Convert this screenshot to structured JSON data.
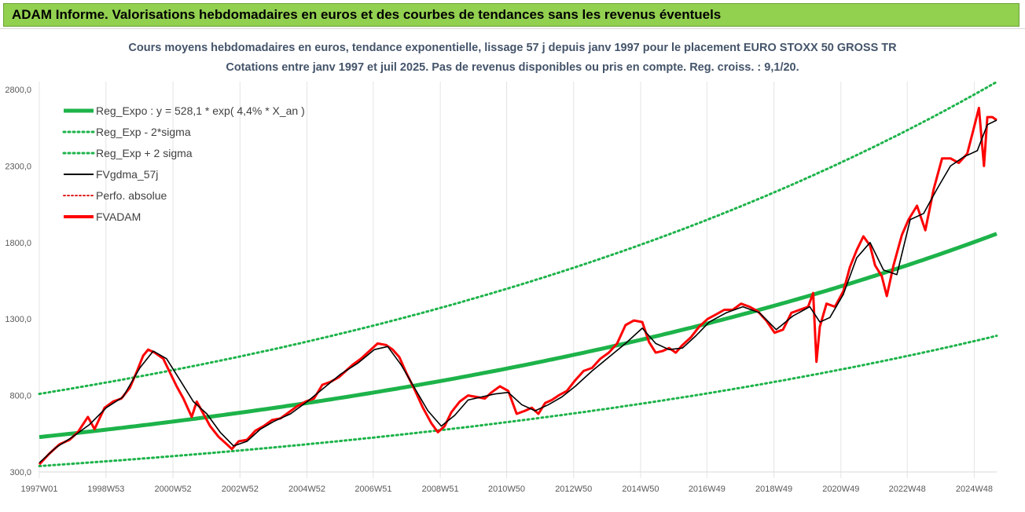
{
  "header": {
    "title": "ADAM Informe. Valorisations hebdomadaires en euros et des courbes de tendances sans les revenus éventuels"
  },
  "colors": {
    "banner": "#92d050",
    "reg_expo": "#1db34a",
    "fvgdma": "#000000",
    "fvadam": "#ff0000",
    "perfo": "#e02020",
    "caption": "#44546a"
  },
  "chart_data": {
    "type": "line",
    "title": "Cours moyens hebdomadaires en euros, tendance exponentielle, lissage 57 j depuis janv 1997 pour le placement EURO STOXX 50 GROSS TR",
    "subtitle": "Cotations entre janv 1997 et juil 2025. Pas de revenus disponibles ou pris en compte. Reg. croiss. : 9,1/20.",
    "ylim": [
      300,
      2800
    ],
    "yticks": [
      "300,0",
      "800,0",
      "1300,0",
      "1800,0",
      "2300,0",
      "2800,0"
    ],
    "xlim": [
      1997.0,
      2025.58
    ],
    "xticks": [
      {
        "label": "1997W01",
        "x": 1997.0
      },
      {
        "label": "1998W53",
        "x": 1998.99
      },
      {
        "label": "2000W52",
        "x": 2000.99
      },
      {
        "label": "2002W52",
        "x": 2002.99
      },
      {
        "label": "2004W52",
        "x": 2004.99
      },
      {
        "label": "2006W51",
        "x": 2006.97
      },
      {
        "label": "2008W51",
        "x": 2008.97
      },
      {
        "label": "2010W50",
        "x": 2010.95
      },
      {
        "label": "2012W50",
        "x": 2012.95
      },
      {
        "label": "2014W50",
        "x": 2014.95
      },
      {
        "label": "2016W49",
        "x": 2016.93
      },
      {
        "label": "2018W49",
        "x": 2018.93
      },
      {
        "label": "2020W49",
        "x": 2020.93
      },
      {
        "label": "2022W48",
        "x": 2022.91
      },
      {
        "label": "2024W48",
        "x": 2024.91
      }
    ],
    "grid": "vertical",
    "legend_position": "top-left",
    "legend": [
      {
        "key": "reg_expo",
        "label": "Reg_Expo : y = 528,1 * exp( 4,4% * X_an )"
      },
      {
        "key": "minus2",
        "label": "Reg_Exp - 2*sigma"
      },
      {
        "key": "plus2",
        "label": "Reg_Exp + 2 sigma"
      },
      {
        "key": "fvgdma",
        "label": "FVgdma_57j"
      },
      {
        "key": "perfo",
        "label": "Perfo. absolue"
      },
      {
        "key": "fvadam",
        "label": "FVADAM"
      }
    ],
    "trend": {
      "a": 528.1,
      "rate": 0.044,
      "minus2_at_end": 1190,
      "plus2_at_end": 2850
    },
    "series": [
      {
        "name": "FVADAM",
        "x": [
          1997.0,
          1997.3,
          1997.6,
          1997.9,
          1998.15,
          1998.45,
          1998.65,
          1998.8,
          1998.95,
          1999.2,
          1999.45,
          1999.7,
          1999.9,
          2000.1,
          2000.25,
          2000.45,
          2000.7,
          2000.9,
          2001.1,
          2001.3,
          2001.55,
          2001.7,
          2001.85,
          2002.1,
          2002.35,
          2002.6,
          2002.75,
          2002.95,
          2003.2,
          2003.45,
          2003.7,
          2003.95,
          2004.2,
          2004.45,
          2004.7,
          2004.95,
          2005.2,
          2005.45,
          2005.7,
          2005.95,
          2006.15,
          2006.35,
          2006.6,
          2006.85,
          2007.1,
          2007.35,
          2007.55,
          2007.75,
          2007.95,
          2008.2,
          2008.45,
          2008.7,
          2008.9,
          2009.1,
          2009.3,
          2009.55,
          2009.8,
          2010.05,
          2010.3,
          2010.5,
          2010.75,
          2011.0,
          2011.25,
          2011.5,
          2011.7,
          2011.9,
          2012.1,
          2012.3,
          2012.5,
          2012.75,
          2013.0,
          2013.25,
          2013.5,
          2013.75,
          2014.0,
          2014.25,
          2014.5,
          2014.75,
          2015.0,
          2015.2,
          2015.4,
          2015.6,
          2015.8,
          2016.0,
          2016.2,
          2016.45,
          2016.7,
          2016.95,
          2017.2,
          2017.45,
          2017.7,
          2017.95,
          2018.2,
          2018.45,
          2018.7,
          2018.95,
          2019.2,
          2019.45,
          2019.7,
          2019.95,
          2020.1,
          2020.2,
          2020.3,
          2020.5,
          2020.75,
          2021.0,
          2021.2,
          2021.4,
          2021.6,
          2021.8,
          2021.95,
          2022.15,
          2022.3,
          2022.5,
          2022.75,
          2022.95,
          2023.2,
          2023.45,
          2023.7,
          2023.95,
          2024.2,
          2024.45,
          2024.7,
          2024.9,
          2025.05,
          2025.2,
          2025.3,
          2025.45,
          2025.58
        ],
        "values": [
          350,
          420,
          480,
          510,
          560,
          660,
          580,
          650,
          720,
          760,
          780,
          850,
          950,
          1060,
          1100,
          1080,
          1040,
          950,
          860,
          780,
          660,
          760,
          700,
          600,
          530,
          480,
          450,
          500,
          510,
          570,
          600,
          640,
          650,
          690,
          730,
          760,
          780,
          870,
          890,
          920,
          960,
          1000,
          1040,
          1090,
          1140,
          1130,
          1100,
          1050,
          950,
          840,
          720,
          620,
          560,
          600,
          690,
          760,
          800,
          790,
          780,
          820,
          860,
          830,
          680,
          700,
          720,
          680,
          750,
          770,
          800,
          830,
          900,
          960,
          980,
          1040,
          1080,
          1140,
          1260,
          1290,
          1280,
          1150,
          1080,
          1090,
          1110,
          1080,
          1130,
          1180,
          1250,
          1300,
          1330,
          1360,
          1360,
          1400,
          1380,
          1350,
          1290,
          1210,
          1230,
          1340,
          1360,
          1380,
          1470,
          1020,
          1250,
          1400,
          1380,
          1480,
          1640,
          1750,
          1840,
          1780,
          1650,
          1580,
          1450,
          1650,
          1850,
          1950,
          2040,
          1880,
          2150,
          2350,
          2350,
          2320,
          2380,
          2550,
          2680,
          2300,
          2620,
          2620,
          2600
        ]
      },
      {
        "name": "FVgdma_57j",
        "x": [
          1997.0,
          1997.5,
          1998.0,
          1998.5,
          1999.0,
          1999.5,
          2000.0,
          2000.4,
          2000.8,
          2001.2,
          2001.6,
          2002.0,
          2002.4,
          2002.8,
          2003.2,
          2003.6,
          2004.0,
          2004.5,
          2005.0,
          2005.5,
          2006.0,
          2006.5,
          2007.0,
          2007.4,
          2007.8,
          2008.2,
          2008.6,
          2009.0,
          2009.4,
          2009.8,
          2010.2,
          2010.6,
          2011.0,
          2011.4,
          2011.8,
          2012.2,
          2012.6,
          2013.0,
          2013.5,
          2014.0,
          2014.5,
          2015.0,
          2015.4,
          2015.8,
          2016.2,
          2016.6,
          2017.0,
          2017.5,
          2018.0,
          2018.5,
          2019.0,
          2019.5,
          2020.0,
          2020.3,
          2020.6,
          2021.0,
          2021.4,
          2021.8,
          2022.2,
          2022.6,
          2023.0,
          2023.4,
          2023.8,
          2024.2,
          2024.6,
          2025.0,
          2025.3,
          2025.58
        ],
        "values": [
          360,
          460,
          530,
          610,
          720,
          790,
          980,
          1090,
          1040,
          900,
          760,
          680,
          560,
          470,
          500,
          580,
          630,
          680,
          760,
          850,
          940,
          1010,
          1100,
          1120,
          1000,
          850,
          700,
          600,
          670,
          770,
          790,
          810,
          820,
          740,
          700,
          740,
          790,
          860,
          960,
          1050,
          1140,
          1240,
          1140,
          1100,
          1110,
          1190,
          1280,
          1340,
          1380,
          1340,
          1230,
          1320,
          1380,
          1280,
          1310,
          1460,
          1700,
          1800,
          1620,
          1590,
          1950,
          1990,
          2150,
          2300,
          2360,
          2400,
          2570,
          2600
        ]
      }
    ]
  }
}
